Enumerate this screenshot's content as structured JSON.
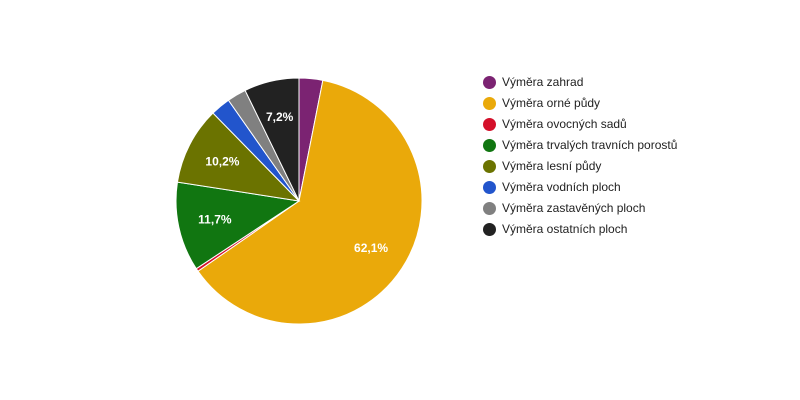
{
  "chart_data": {
    "type": "pie",
    "title": "",
    "legend_position": "right",
    "slices": [
      {
        "label": "Výměra zahrad",
        "value": 3.1,
        "color": "#7b2372"
      },
      {
        "label": "Výměra orné půdy",
        "value": 62.1,
        "value_label": "62,1%",
        "color": "#eaa90a"
      },
      {
        "label": "Výměra ovocných sadů",
        "value": 0.4,
        "color": "#d4102a"
      },
      {
        "label": "Výměra trvalých travních porostů",
        "value": 11.7,
        "value_label": "11,7%",
        "color": "#117611"
      },
      {
        "label": "Výměra lesní půdy",
        "value": 10.2,
        "value_label": "10,2%",
        "color": "#6b7300"
      },
      {
        "label": "Výměra vodních ploch",
        "value": 2.6,
        "color": "#2255cc"
      },
      {
        "label": "Výměra zastavěných ploch",
        "value": 2.5,
        "color": "#808080"
      },
      {
        "label": "Výměra ostatních ploch",
        "value": 7.2,
        "value_label": "7,2%",
        "color": "#222222"
      }
    ]
  }
}
